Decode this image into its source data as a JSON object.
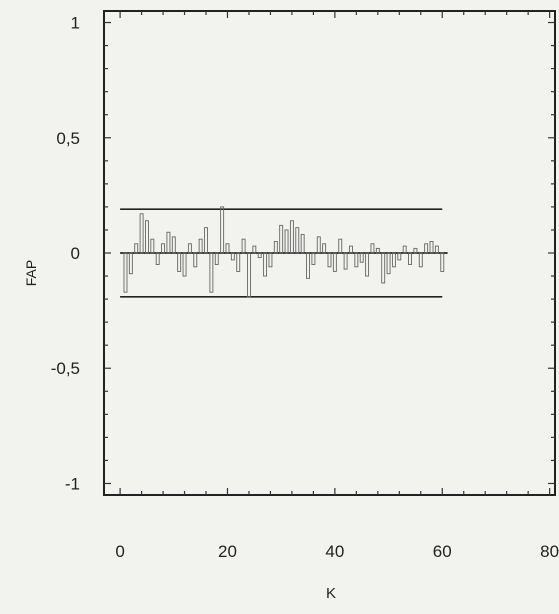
{
  "chart_data": {
    "type": "bar",
    "title": "",
    "xlabel": "K",
    "ylabel": "FAP",
    "xlim": [
      -3,
      81
    ],
    "ylim": [
      -1.05,
      1.05
    ],
    "x_ticks": [
      "0",
      "20",
      "40",
      "60",
      "80"
    ],
    "y_ticks": [
      "1",
      "0,5",
      "0",
      "-0,5",
      "-1"
    ],
    "confidence_band": {
      "upper": 0.19,
      "lower": -0.19,
      "x_range": [
        0,
        60
      ]
    },
    "series": [
      {
        "x": [
          1,
          2,
          3,
          4,
          5,
          6,
          7,
          8,
          9,
          10,
          11,
          12,
          13,
          14,
          15,
          16,
          17,
          18,
          19,
          20,
          21,
          22,
          23,
          24,
          25,
          26,
          27,
          28,
          29,
          30,
          31,
          32,
          33,
          34,
          35,
          36,
          37,
          38,
          39,
          40,
          41,
          42,
          43,
          44,
          45,
          46,
          47,
          48,
          49,
          50,
          51,
          52,
          53,
          54,
          55,
          56,
          57,
          58,
          59,
          60
        ],
        "values": [
          -0.17,
          -0.09,
          0.04,
          0.17,
          0.14,
          0.06,
          -0.05,
          0.04,
          0.09,
          0.07,
          -0.08,
          -0.1,
          0.04,
          -0.06,
          0.06,
          0.11,
          -0.17,
          -0.05,
          0.2,
          0.04,
          -0.03,
          -0.08,
          0.06,
          -0.19,
          0.03,
          -0.02,
          -0.1,
          -0.06,
          0.05,
          0.12,
          0.1,
          0.14,
          0.11,
          0.08,
          -0.11,
          -0.05,
          0.07,
          0.04,
          -0.06,
          -0.08,
          0.06,
          -0.07,
          0.03,
          -0.06,
          -0.04,
          -0.1,
          0.04,
          0.02,
          -0.13,
          -0.09,
          -0.06,
          -0.03,
          0.03,
          -0.05,
          0.02,
          -0.06,
          0.04,
          0.05,
          0.03,
          -0.08
        ]
      }
    ]
  }
}
